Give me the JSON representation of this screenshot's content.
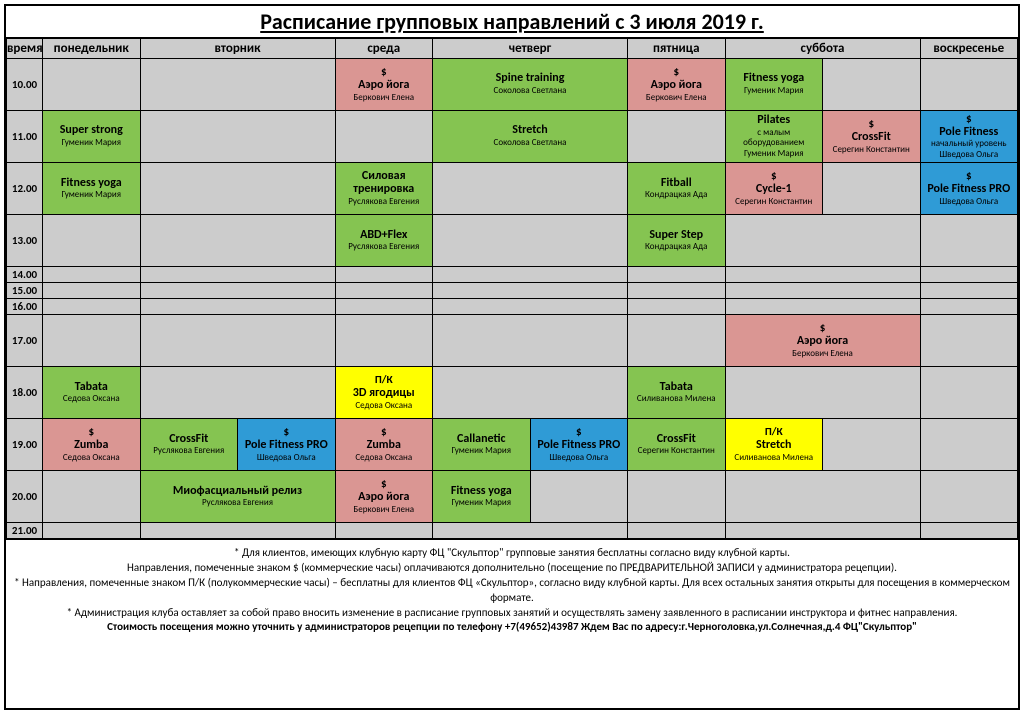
{
  "title": "Расписание  групповых направлений с 3 июля 2019 г.",
  "colors": {
    "grey": "#cccccc",
    "green": "#85c451",
    "pink": "#da9693",
    "blue": "#2f9bd6",
    "yellow": "#ffff00"
  },
  "timeHeader": "время",
  "days": [
    "понедельник",
    "вторник",
    "среда",
    "четверг",
    "пятница",
    "суббота",
    "воскресенье"
  ],
  "daySpans": [
    1,
    2,
    1,
    2,
    1,
    2,
    1
  ],
  "times": [
    "10.00",
    "11.00",
    "12.00",
    "13.00",
    "14.00",
    "15.00",
    "16.00",
    "17.00",
    "18.00",
    "19.00",
    "20.00",
    "21.00"
  ],
  "rowTypes": [
    "tall",
    "tall",
    "tall",
    "tall",
    "short",
    "short",
    "short",
    "tall",
    "tall",
    "tall",
    "tall",
    "short"
  ],
  "cells": [
    [
      {},
      {
        "span": 2
      },
      {
        "tag": "$",
        "name": "Аэро йога",
        "instr": "Беркович Елена",
        "color": "pink"
      },
      {
        "span": 2,
        "name": "Spine training",
        "instr": "Соколова Светлана",
        "color": "green"
      },
      {
        "tag": "$",
        "name": "Аэро йога",
        "instr": "Беркович Елена",
        "color": "pink"
      },
      {
        "name": "Fitness yoga",
        "instr": "Гуменик Мария",
        "color": "green"
      },
      {},
      {}
    ],
    [
      {
        "name": "Super strong",
        "instr": "Гуменик Мария",
        "color": "green"
      },
      {
        "span": 2
      },
      {},
      {
        "span": 2,
        "name": "Stretch",
        "instr": "Соколова Светлана",
        "color": "green"
      },
      {},
      {
        "name": "Pilates",
        "sub": "с малым оборудованием",
        "instr": "Гуменик Мария",
        "color": "green"
      },
      {
        "tag": "$",
        "name": "CrossFit",
        "instr": "Серегин Константин",
        "color": "pink"
      },
      {
        "tag": "$",
        "name": "Pole Fitness",
        "sub": "начальный уровень",
        "instr": "Шведова Ольга",
        "color": "blue"
      }
    ],
    [
      {
        "name": "Fitness yoga",
        "instr": "Гуменик Мария",
        "color": "green"
      },
      {
        "span": 2
      },
      {
        "name": "Силовая тренировка",
        "instr": "Руслякова Евгения",
        "color": "green"
      },
      {
        "span": 2
      },
      {
        "name": "Fitball",
        "instr": "Кондрацкая Ада",
        "color": "green"
      },
      {
        "tag": "$",
        "name": "Cycle-1",
        "instr": "Серегин Константин",
        "color": "pink"
      },
      {},
      {
        "tag": "$",
        "name": "Pole Fitness PRO",
        "instr": "Шведова Ольга",
        "color": "blue"
      }
    ],
    [
      {},
      {
        "span": 2
      },
      {
        "name": "ABD+Flex",
        "instr": "Руслякова Евгения",
        "color": "green"
      },
      {
        "span": 2
      },
      {
        "name": "Super Step",
        "instr": "Кондрацкая Ада",
        "color": "green"
      },
      {
        "span": 2
      },
      {}
    ],
    [
      {},
      {
        "span": 2
      },
      {},
      {
        "span": 2
      },
      {},
      {
        "span": 2
      },
      {}
    ],
    [
      {},
      {
        "span": 2
      },
      {},
      {
        "span": 2
      },
      {},
      {
        "span": 2
      },
      {}
    ],
    [
      {},
      {
        "span": 2
      },
      {},
      {
        "span": 2
      },
      {},
      {
        "span": 2
      },
      {}
    ],
    [
      {},
      {
        "span": 2
      },
      {},
      {
        "span": 2
      },
      {},
      {
        "span": 2,
        "tag": "$",
        "name": "Аэро йога",
        "instr": "Беркович Елена",
        "color": "pink"
      },
      {}
    ],
    [
      {
        "name": "Tabata",
        "instr": "Седова Оксана",
        "color": "green"
      },
      {
        "span": 2
      },
      {
        "tag": "П/К",
        "name": "3D ягодицы",
        "instr": "Седова Оксана",
        "color": "yellow"
      },
      {
        "span": 2
      },
      {
        "name": "Tabata",
        "instr": "Силиванова Милена",
        "color": "green"
      },
      {
        "span": 2
      },
      {}
    ],
    [
      {
        "tag": "$",
        "name": "Zumba",
        "instr": "Седова Оксана",
        "color": "pink"
      },
      {
        "name": "CrossFit",
        "instr": "Руслякова Евгения",
        "color": "green"
      },
      {
        "tag": "$",
        "name": "Pole Fitness PRO",
        "instr": "Шведова Ольга",
        "color": "blue"
      },
      {
        "tag": "$",
        "name": "Zumba",
        "instr": "Седова Оксана",
        "color": "pink"
      },
      {
        "name": "Callanetic",
        "instr": "Гуменик Мария",
        "color": "green"
      },
      {
        "tag": "$",
        "name": "Pole Fitness PRO",
        "instr": "Шведова Ольга",
        "color": "blue"
      },
      {
        "name": "CrossFit",
        "instr": "Серегин Константин",
        "color": "green"
      },
      {
        "tag": "П/К",
        "name": "Stretch",
        "instr": "Силиванова Милена",
        "color": "yellow"
      },
      {},
      {}
    ],
    [
      {},
      {
        "span": 2,
        "name": "Миофасциальный релиз",
        "instr": "Руслякова Евгения",
        "color": "green"
      },
      {
        "tag": "$",
        "name": "Аэро йога",
        "instr": "Беркович Елена",
        "color": "pink"
      },
      {
        "name": "Fitness yoga",
        "instr": "Гуменик Мария",
        "color": "green"
      },
      {},
      {},
      {
        "span": 2
      },
      {}
    ],
    [
      {},
      {
        "span": 2
      },
      {},
      {
        "span": 2
      },
      {},
      {
        "span": 2
      },
      {}
    ]
  ],
  "footerLines": [
    "* Для клиентов, имеющих клубную карту ФЦ \"Скульптор\" групповые занятия  бесплатны согласно виду клубной карты.",
    "Направления, помеченные знаком $ (коммерческие часы) оплачиваются дополнительно (посещение по ПРЕДВАРИТЕЛЬНОЙ ЗАПИСИ у администратора рецепции).",
    "* Направления, помеченные знаком П/К (полукоммерческие часы) – бесплатны для клиентов ФЦ «Скульптор», согласно виду клубной карты. Для всех остальных занятия открыты для посещения в коммерческом формате.",
    "* Администрация клуба оставляет за собой право вносить изменение в расписание групповых занятий и осуществлять замену заявленного в расписании инструктора и фитнес направления.",
    "Стоимость посещения можно уточнить у администраторов рецепции по телефону +7(49652)43987   Ждем Вас по адресу:г.Черноголовка,ул.Солнечная,д.4 ФЦ\"Скульптор\""
  ]
}
